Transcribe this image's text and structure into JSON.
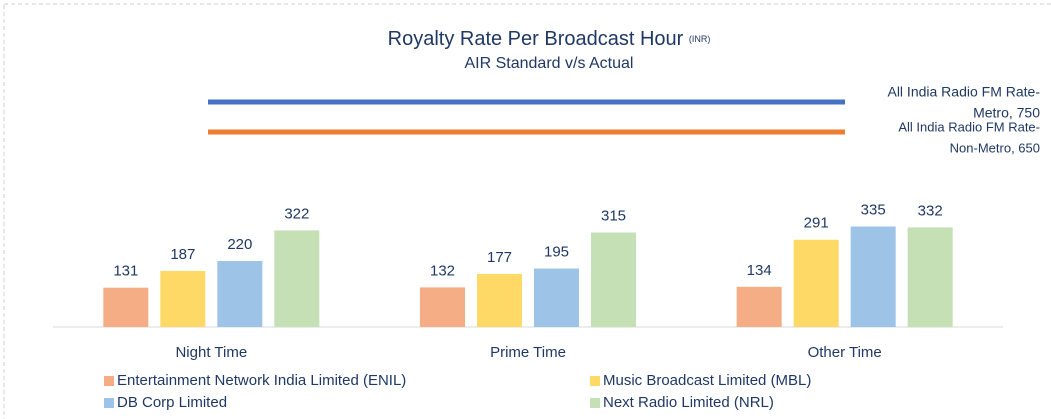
{
  "chart_data": {
    "type": "bar",
    "title": "Royalty Rate Per Broadcast Hour",
    "title_unit": "(INR)",
    "subtitle": "AIR Standard v/s Actual",
    "categories": [
      "Night Time",
      "Prime Time",
      "Other Time"
    ],
    "series": [
      {
        "name": "Entertainment Network India Limited (ENIL)",
        "color": "#f4ad84",
        "values": [
          131,
          132,
          134
        ]
      },
      {
        "name": "Music Broadcast Limited (MBL)",
        "color": "#ffd966",
        "values": [
          187,
          177,
          291
        ]
      },
      {
        "name": "DB Corp Limited",
        "color": "#9dc3e6",
        "values": [
          220,
          195,
          335
        ]
      },
      {
        "name": "Next Radio Limited (NRL)",
        "color": "#c5e0b4",
        "values": [
          322,
          315,
          332
        ]
      }
    ],
    "reference_lines": [
      {
        "label_lines": [
          "All India Radio FM Rate-",
          "Metro, 750"
        ],
        "value": 750,
        "color": "#4472c4",
        "label_color": "#1f3864"
      },
      {
        "label_lines": [
          "All India Radio FM Rate-",
          "Non-Metro, 650"
        ],
        "value": 650,
        "color": "#ed7d31",
        "label_color": "#c55a11"
      }
    ],
    "ylim": [
      0,
      800
    ]
  }
}
